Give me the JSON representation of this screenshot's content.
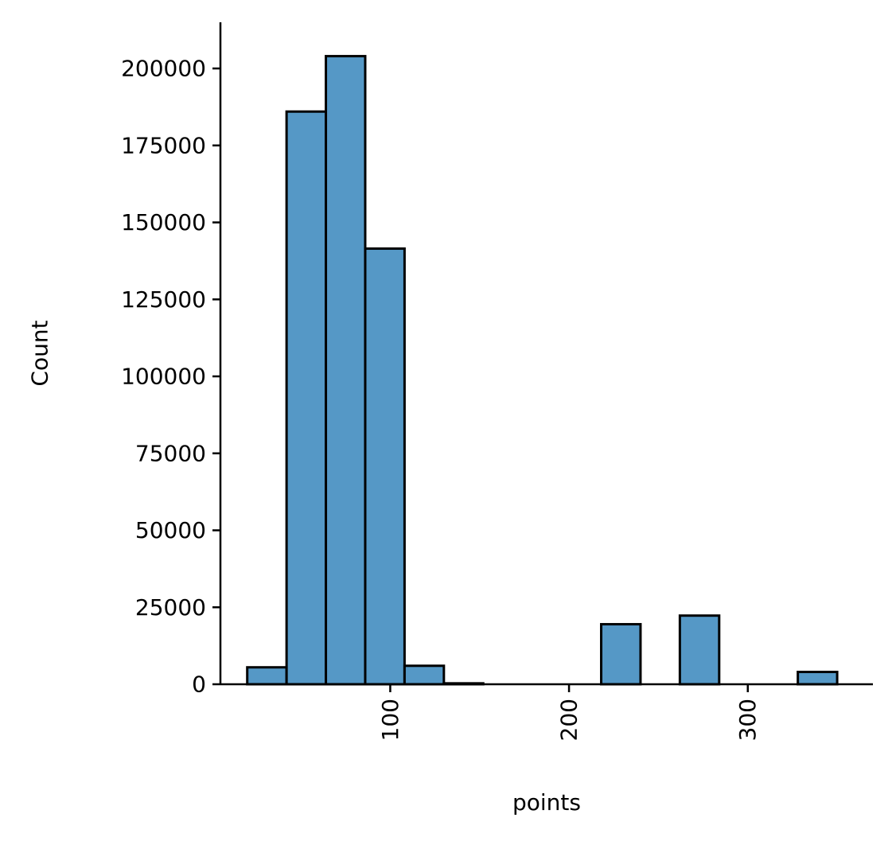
{
  "chart_data": {
    "type": "bar",
    "subtype": "histogram",
    "xlabel": "points",
    "ylabel": "Count",
    "xlim": [
      5,
      370
    ],
    "ylim": [
      0,
      215000
    ],
    "x_ticks": [
      100,
      200,
      300
    ],
    "y_ticks": [
      0,
      25000,
      50000,
      75000,
      100000,
      125000,
      150000,
      175000,
      200000
    ],
    "x_tick_rotation": -90,
    "bin_width": 22,
    "bins": [
      {
        "start": 20,
        "end": 42,
        "value": 5500
      },
      {
        "start": 42,
        "end": 64,
        "value": 186000
      },
      {
        "start": 64,
        "end": 86,
        "value": 204000
      },
      {
        "start": 86,
        "end": 108,
        "value": 141500
      },
      {
        "start": 108,
        "end": 130,
        "value": 6000
      },
      {
        "start": 130,
        "end": 152,
        "value": 300
      },
      {
        "start": 152,
        "end": 174,
        "value": 0
      },
      {
        "start": 174,
        "end": 196,
        "value": 0
      },
      {
        "start": 196,
        "end": 218,
        "value": 0
      },
      {
        "start": 218,
        "end": 240,
        "value": 19500
      },
      {
        "start": 240,
        "end": 262,
        "value": 0
      },
      {
        "start": 262,
        "end": 284,
        "value": 22300
      },
      {
        "start": 284,
        "end": 306,
        "value": 0
      },
      {
        "start": 306,
        "end": 328,
        "value": 0
      },
      {
        "start": 328,
        "end": 350,
        "value": 4000
      }
    ],
    "grid": false,
    "spines": [
      "left",
      "bottom"
    ],
    "colors": {
      "bar_fill": "#5598C6",
      "bar_edge": "#000000",
      "axis": "#000000",
      "text": "#000000"
    }
  }
}
